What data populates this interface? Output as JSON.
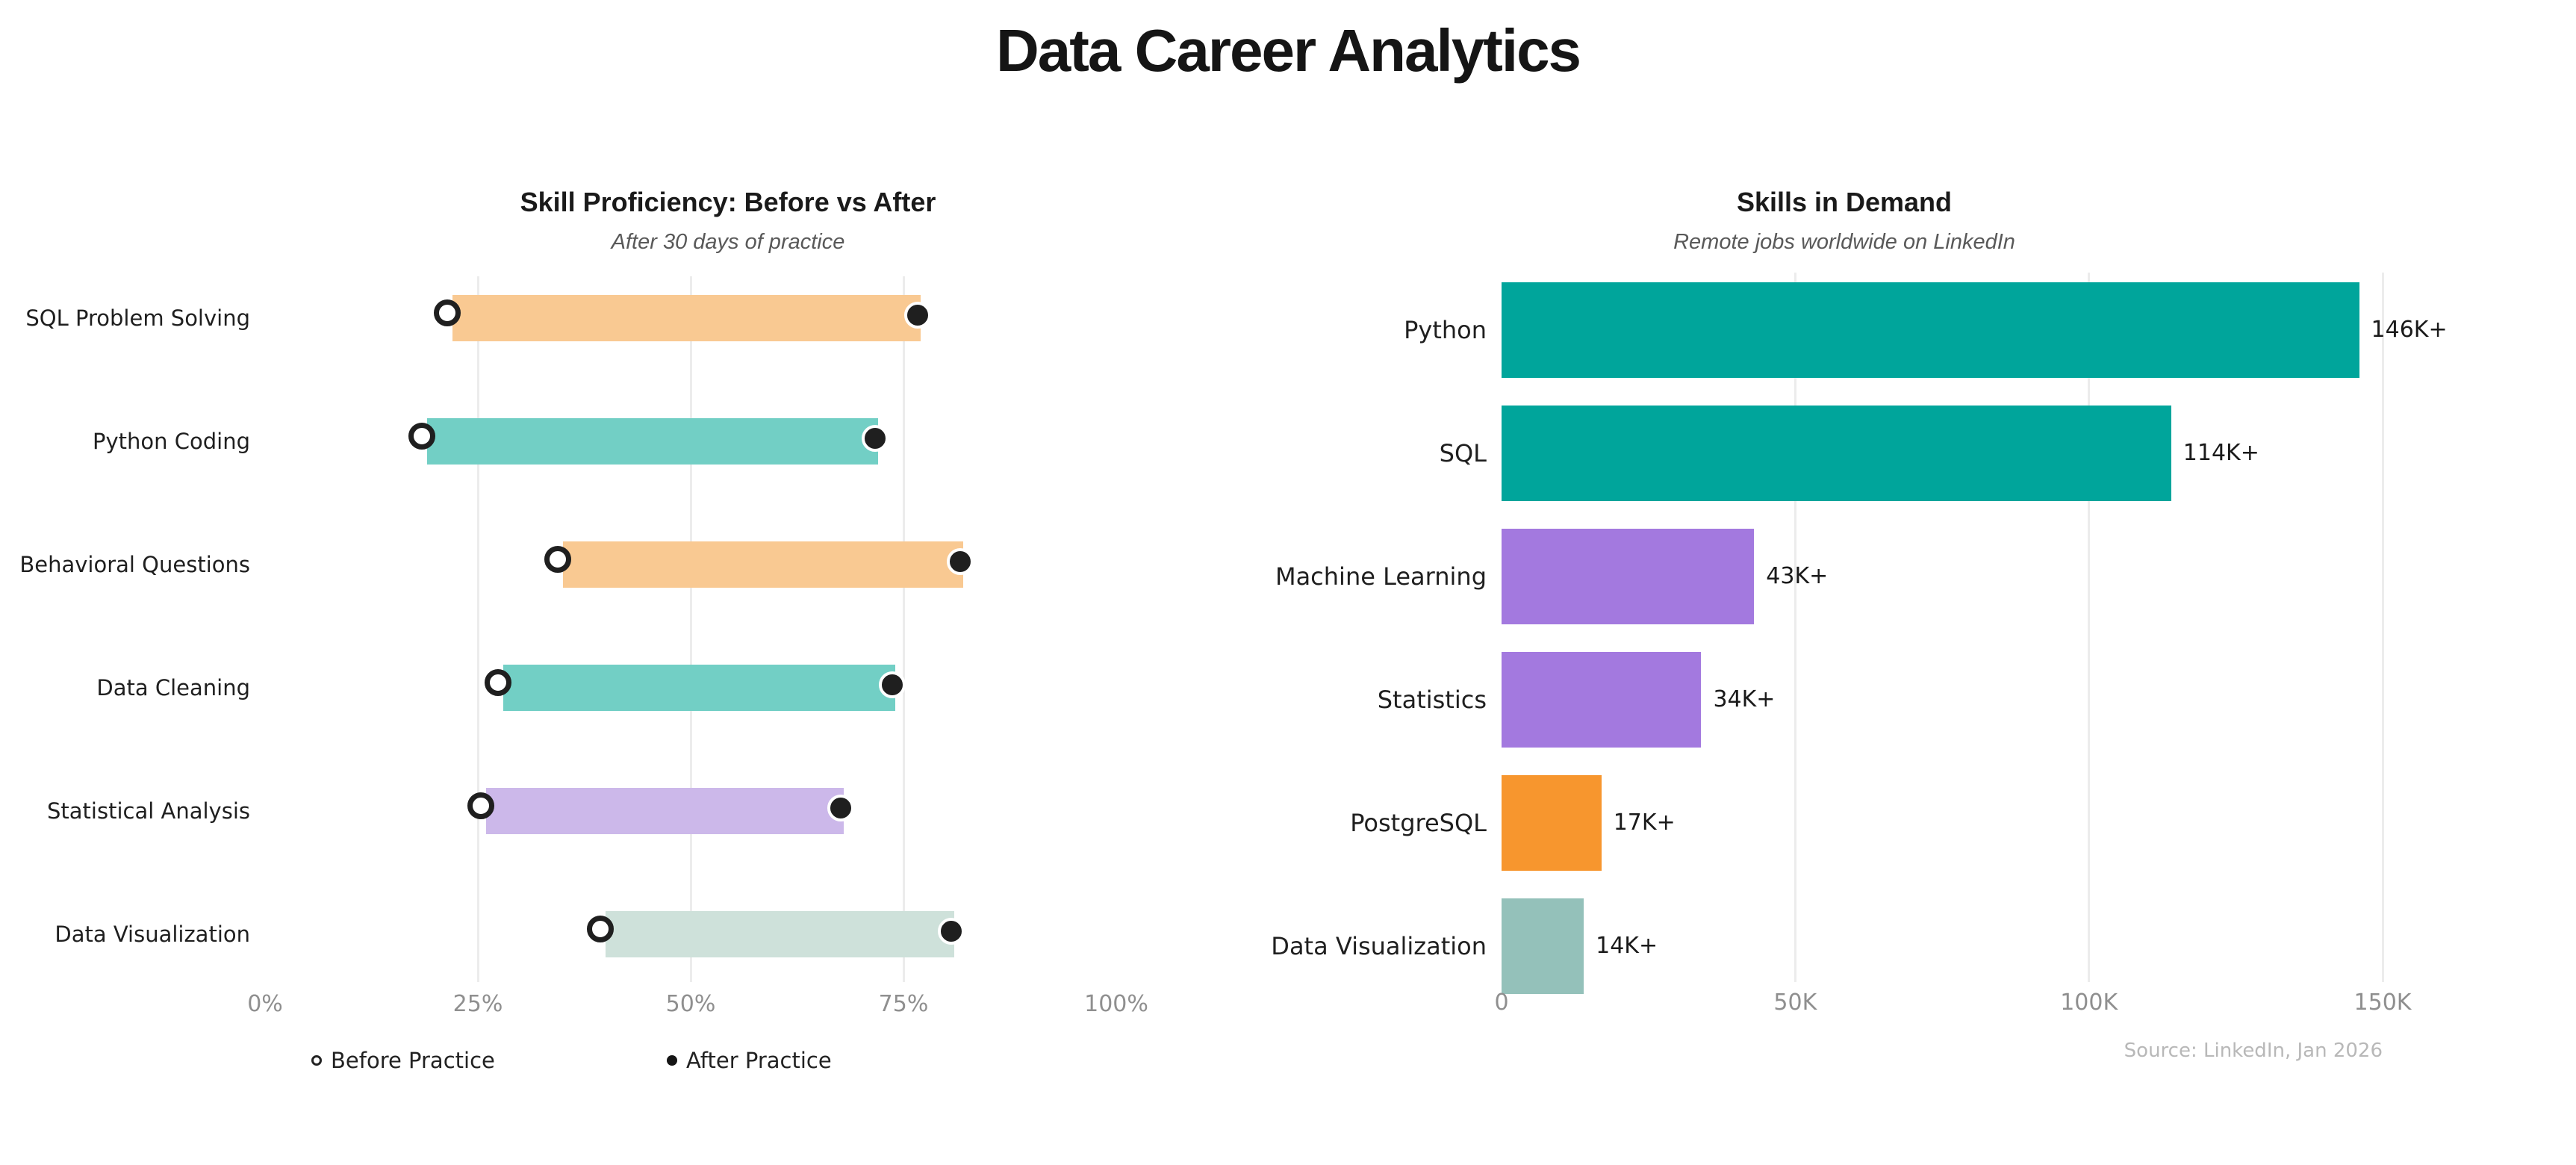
{
  "header": {
    "title": "Data Career Analytics"
  },
  "charts": {
    "skill": {
      "title": "Skill Proficiency: Before vs After",
      "subtitle": "After 30 days of practice",
      "legend": {
        "before": "Before Practice",
        "after": "After Practice"
      }
    },
    "demand": {
      "title": "Skills in Demand",
      "subtitle": "Remote jobs worldwide on LinkedIn",
      "source": "Source: LinkedIn, Jan 2026"
    }
  },
  "chart_data": [
    {
      "type": "dumbbell-bar",
      "title": "Skill Proficiency: Before vs After",
      "subtitle": "After 30 days of practice",
      "categories": [
        "SQL Problem Solving",
        "Python Coding",
        "Behavioral Questions",
        "Data Cleaning",
        "Statistical Analysis",
        "Data Visualization"
      ],
      "series": [
        {
          "name": "Before Practice",
          "marker": "open-circle",
          "values": [
            22,
            19,
            35,
            28,
            26,
            40
          ]
        },
        {
          "name": "After Practice",
          "marker": "filled-circle",
          "values": [
            77,
            72,
            82,
            74,
            68,
            81
          ]
        }
      ],
      "bar_colors": [
        "#F9C992",
        "#72CFC5",
        "#F9C992",
        "#72CFC5",
        "#CCB8EA",
        "#CEE1DA"
      ],
      "xlabel": "",
      "ylabel": "",
      "xlim": [
        0,
        100
      ],
      "x_tick_values": [
        0,
        25,
        50,
        75,
        100
      ],
      "x_tick_labels": [
        "0%",
        "25%",
        "50%",
        "75%",
        "100%"
      ],
      "gridlines_at": [
        25,
        50,
        75
      ],
      "grid": true,
      "legend_position": "bottom"
    },
    {
      "type": "bar",
      "title": "Skills in Demand",
      "subtitle": "Remote jobs worldwide on LinkedIn",
      "categories": [
        "Python",
        "SQL",
        "Machine Learning",
        "Statistics",
        "PostgreSQL",
        "Data Visualization"
      ],
      "values": [
        146000,
        114000,
        43000,
        34000,
        17000,
        14000
      ],
      "value_labels": [
        "146K+",
        "114K+",
        "43K+",
        "34K+",
        "17K+",
        "14K+"
      ],
      "bar_colors": [
        "#00A59B",
        "#00A59B",
        "#A379DF",
        "#A379DF",
        "#F7962E",
        "#94C1BA"
      ],
      "xlabel": "",
      "ylabel": "",
      "xlim": [
        0,
        150000
      ],
      "x_tick_values": [
        0,
        50000,
        100000,
        150000
      ],
      "x_tick_labels": [
        "0",
        "50K",
        "100K",
        "150K"
      ],
      "gridlines_at": [
        50000,
        100000,
        150000
      ],
      "grid": true,
      "annotation": "Source: LinkedIn, Jan 2026"
    }
  ]
}
